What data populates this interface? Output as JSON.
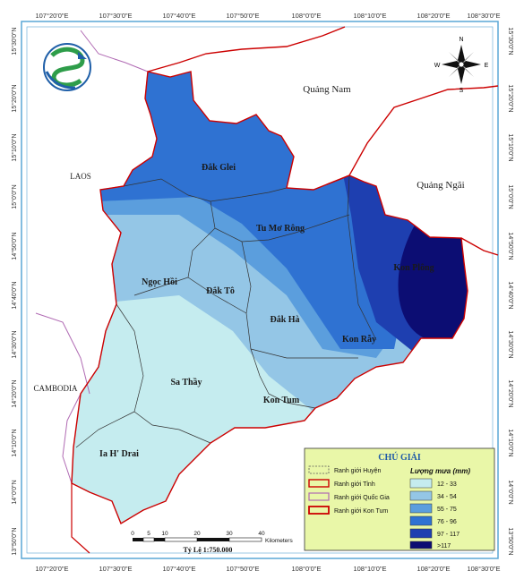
{
  "coordinates": {
    "top": [
      "107°20'0\"E",
      "107°30'0\"E",
      "107°40'0\"E",
      "107°50'0\"E",
      "108°0'0\"E",
      "108°10'0\"E",
      "108°20'0\"E",
      "108°30'0\"E"
    ],
    "bottom": [
      "107°20'0\"E",
      "107°30'0\"E",
      "107°40'0\"E",
      "107°50'0\"E",
      "108°0'0\"E",
      "108°10'0\"E",
      "108°20'0\"E",
      "108°30'0\"E"
    ],
    "left": [
      "15°30'0\"N",
      "15°20'0\"N",
      "15°10'0\"N",
      "15°0'0\"N",
      "14°50'0\"N",
      "14°40'0\"N",
      "14°30'0\"N",
      "14°20'0\"N",
      "14°10'0\"N",
      "14°0'0\"N",
      "13°50'0\"N"
    ],
    "right": [
      "15°30'0\"N",
      "15°20'0\"N",
      "15°10'0\"N",
      "15°0'0\"N",
      "14°50'0\"N",
      "14°40'0\"N",
      "14°30'0\"N",
      "14°20'0\"N",
      "14°10'0\"N",
      "14°0'0\"N",
      "13°50'0\"N"
    ]
  },
  "regions": {
    "quang_nam": "Quảng Nam",
    "quang_ngai": "Quảng Ngãi",
    "laos": "LAOS",
    "cambodia": "CAMBODIA"
  },
  "districts": {
    "dak_glei": "Đắk Glei",
    "tu_mo_rong": "Tu Mơ Rông",
    "kon_plong": "Kon Plông",
    "ngoc_hoi": "Ngọc Hồi",
    "dak_to": "Đắk Tô",
    "dak_ha": "Đắk Hà",
    "kon_ray": "Kon Rẫy",
    "sa_thay": "Sa Thầy",
    "kon_tum": "Kon Tum",
    "ia_h_drai": "Ia H' Drai"
  },
  "compass": {
    "n": "N",
    "s": "S",
    "e": "E",
    "w": "W"
  },
  "scale_bar": {
    "ticks": [
      "0",
      "5",
      "10",
      "20",
      "30",
      "40"
    ],
    "unit": "Kilometers",
    "ratio_text": "Tỷ Lệ 1:750.000"
  },
  "legend": {
    "title": "CHÚ GIẢI",
    "boundaries": [
      {
        "label": "Ranh giới Huyện",
        "style": "dashed",
        "color": "#555555"
      },
      {
        "label": "Ranh giới Tỉnh",
        "style": "solid",
        "color": "#cc0000"
      },
      {
        "label": "Ranh giới Quốc Gia",
        "style": "solid",
        "color": "#b06ab3"
      },
      {
        "label": "Ranh giới Kon Tum",
        "style": "solid",
        "color": "#cc0000"
      }
    ],
    "rain_title": "Lượng mưa (mm)",
    "rain_classes": [
      {
        "label": "12 - 33",
        "color": "#c5ecef"
      },
      {
        "label": "34 - 54",
        "color": "#94c6e6"
      },
      {
        "label": "55 - 75",
        "color": "#5b9edd"
      },
      {
        "label": "76 - 96",
        "color": "#2f72d2"
      },
      {
        "label": "97 - 117",
        "color": "#1e3fb0"
      },
      {
        "label": ">117",
        "color": "#0c0d73"
      }
    ]
  },
  "colors": {
    "background": "#ffffff",
    "frame": "#5aa7d6",
    "province_border": "#cc0000",
    "national_border": "#b06ab3",
    "district_border": "#333333",
    "legend_bg": "#e9f7a8"
  }
}
